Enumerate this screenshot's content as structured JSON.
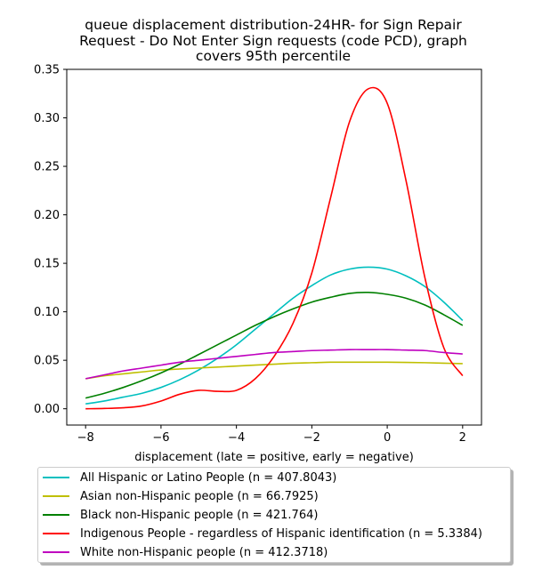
{
  "chart_data": {
    "type": "line",
    "title_lines": [
      "queue displacement distribution-24HR-  for Sign Repair",
      "Request - Do Not Enter Sign  requests (code PCD), graph",
      "covers 95th percentile"
    ],
    "xlabel": "displacement (late = positive, early = negative)",
    "ylabel": "",
    "xlim": [
      -8.5,
      2.5
    ],
    "ylim": [
      -0.0168,
      0.35
    ],
    "xticks": [
      -8,
      -6,
      -4,
      -2,
      0,
      2
    ],
    "xtick_labels": [
      "−8",
      "−6",
      "−4",
      "−2",
      "0",
      "2"
    ],
    "yticks": [
      0.0,
      0.05,
      0.1,
      0.15,
      0.2,
      0.25,
      0.3,
      0.35
    ],
    "ytick_labels": [
      "0.00",
      "0.05",
      "0.10",
      "0.15",
      "0.20",
      "0.25",
      "0.30",
      "0.35"
    ],
    "x": [
      -8,
      -7.5,
      -7,
      -6.5,
      -6,
      -5.5,
      -5,
      -4.5,
      -4,
      -3.5,
      -3,
      -2.5,
      -2,
      -1.5,
      -1,
      -0.5,
      0,
      0.5,
      1,
      1.5,
      2
    ],
    "series": [
      {
        "name": "All Hispanic or Latino People (n = 407.8043)",
        "color": "#00bfbf",
        "values": [
          0.005,
          0.008,
          0.012,
          0.016,
          0.022,
          0.03,
          0.04,
          0.052,
          0.066,
          0.082,
          0.098,
          0.114,
          0.127,
          0.138,
          0.144,
          0.146,
          0.144,
          0.137,
          0.126,
          0.11,
          0.091
        ]
      },
      {
        "name": "Asian non-Hispanic people (n = 66.7925)",
        "color": "#bfbf00",
        "values": [
          0.031,
          0.034,
          0.036,
          0.038,
          0.04,
          0.041,
          0.042,
          0.043,
          0.044,
          0.045,
          0.046,
          0.047,
          0.0475,
          0.048,
          0.048,
          0.048,
          0.048,
          0.0478,
          0.0475,
          0.047,
          0.0465
        ]
      },
      {
        "name": "Black non-Hispanic people (n = 421.764)",
        "color": "#008000",
        "values": [
          0.011,
          0.016,
          0.022,
          0.029,
          0.037,
          0.046,
          0.056,
          0.066,
          0.076,
          0.086,
          0.095,
          0.103,
          0.11,
          0.115,
          0.119,
          0.12,
          0.118,
          0.114,
          0.107,
          0.097,
          0.086
        ]
      },
      {
        "name": "Indigenous People - regardless of Hispanic identification (n = 5.3384)",
        "color": "#ff0000",
        "values": [
          0.0,
          0.0003,
          0.001,
          0.003,
          0.008,
          0.015,
          0.019,
          0.018,
          0.019,
          0.031,
          0.054,
          0.088,
          0.14,
          0.218,
          0.296,
          0.33,
          0.315,
          0.235,
          0.135,
          0.063,
          0.034
        ]
      },
      {
        "name": "White non-Hispanic people (n = 412.3718)",
        "color": "#bf00bf",
        "values": [
          0.031,
          0.035,
          0.039,
          0.042,
          0.045,
          0.048,
          0.05,
          0.052,
          0.054,
          0.056,
          0.058,
          0.059,
          0.06,
          0.0605,
          0.061,
          0.061,
          0.061,
          0.0605,
          0.06,
          0.058,
          0.0565
        ]
      }
    ],
    "legend_position": "below plot"
  }
}
